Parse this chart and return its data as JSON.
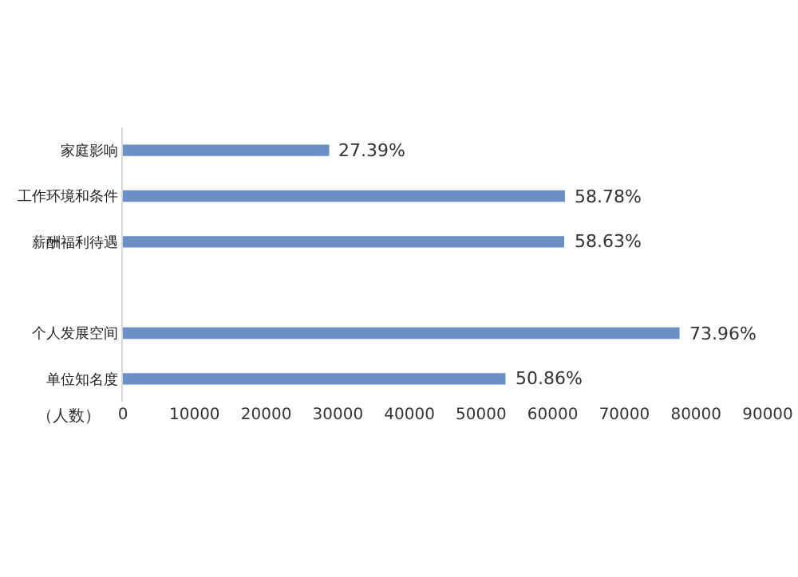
{
  "chart_data": {
    "type": "bar",
    "orientation": "horizontal",
    "xlabel": "（人数）",
    "categories": [
      "家庭影响",
      "工作环境和条件",
      "薪酬福利待遇",
      null,
      "个人发展空间",
      "单位知名度"
    ],
    "values": [
      28800,
      61700,
      61600,
      null,
      77700,
      53400
    ],
    "annotations": [
      {
        "text": "27.39%",
        "x": 28800,
        "y": "家庭影响"
      },
      {
        "text": "58.78%",
        "x": 61700,
        "y": "工作环境和条件"
      },
      {
        "text": "58.63%",
        "x": 61600,
        "y": "薪酬福利待遇"
      },
      {
        "text": "73.96%",
        "x": 77700,
        "y": "个人发展空间"
      },
      {
        "text": "50.86%",
        "x": 53400,
        "y": "单位知名度"
      }
    ],
    "color": "#6a8fc2",
    "xlim": [
      0,
      90000
    ],
    "xticks": [
      0,
      10000,
      20000,
      30000,
      40000,
      50000,
      60000,
      70000,
      80000,
      90000
    ],
    "grid": false
  }
}
